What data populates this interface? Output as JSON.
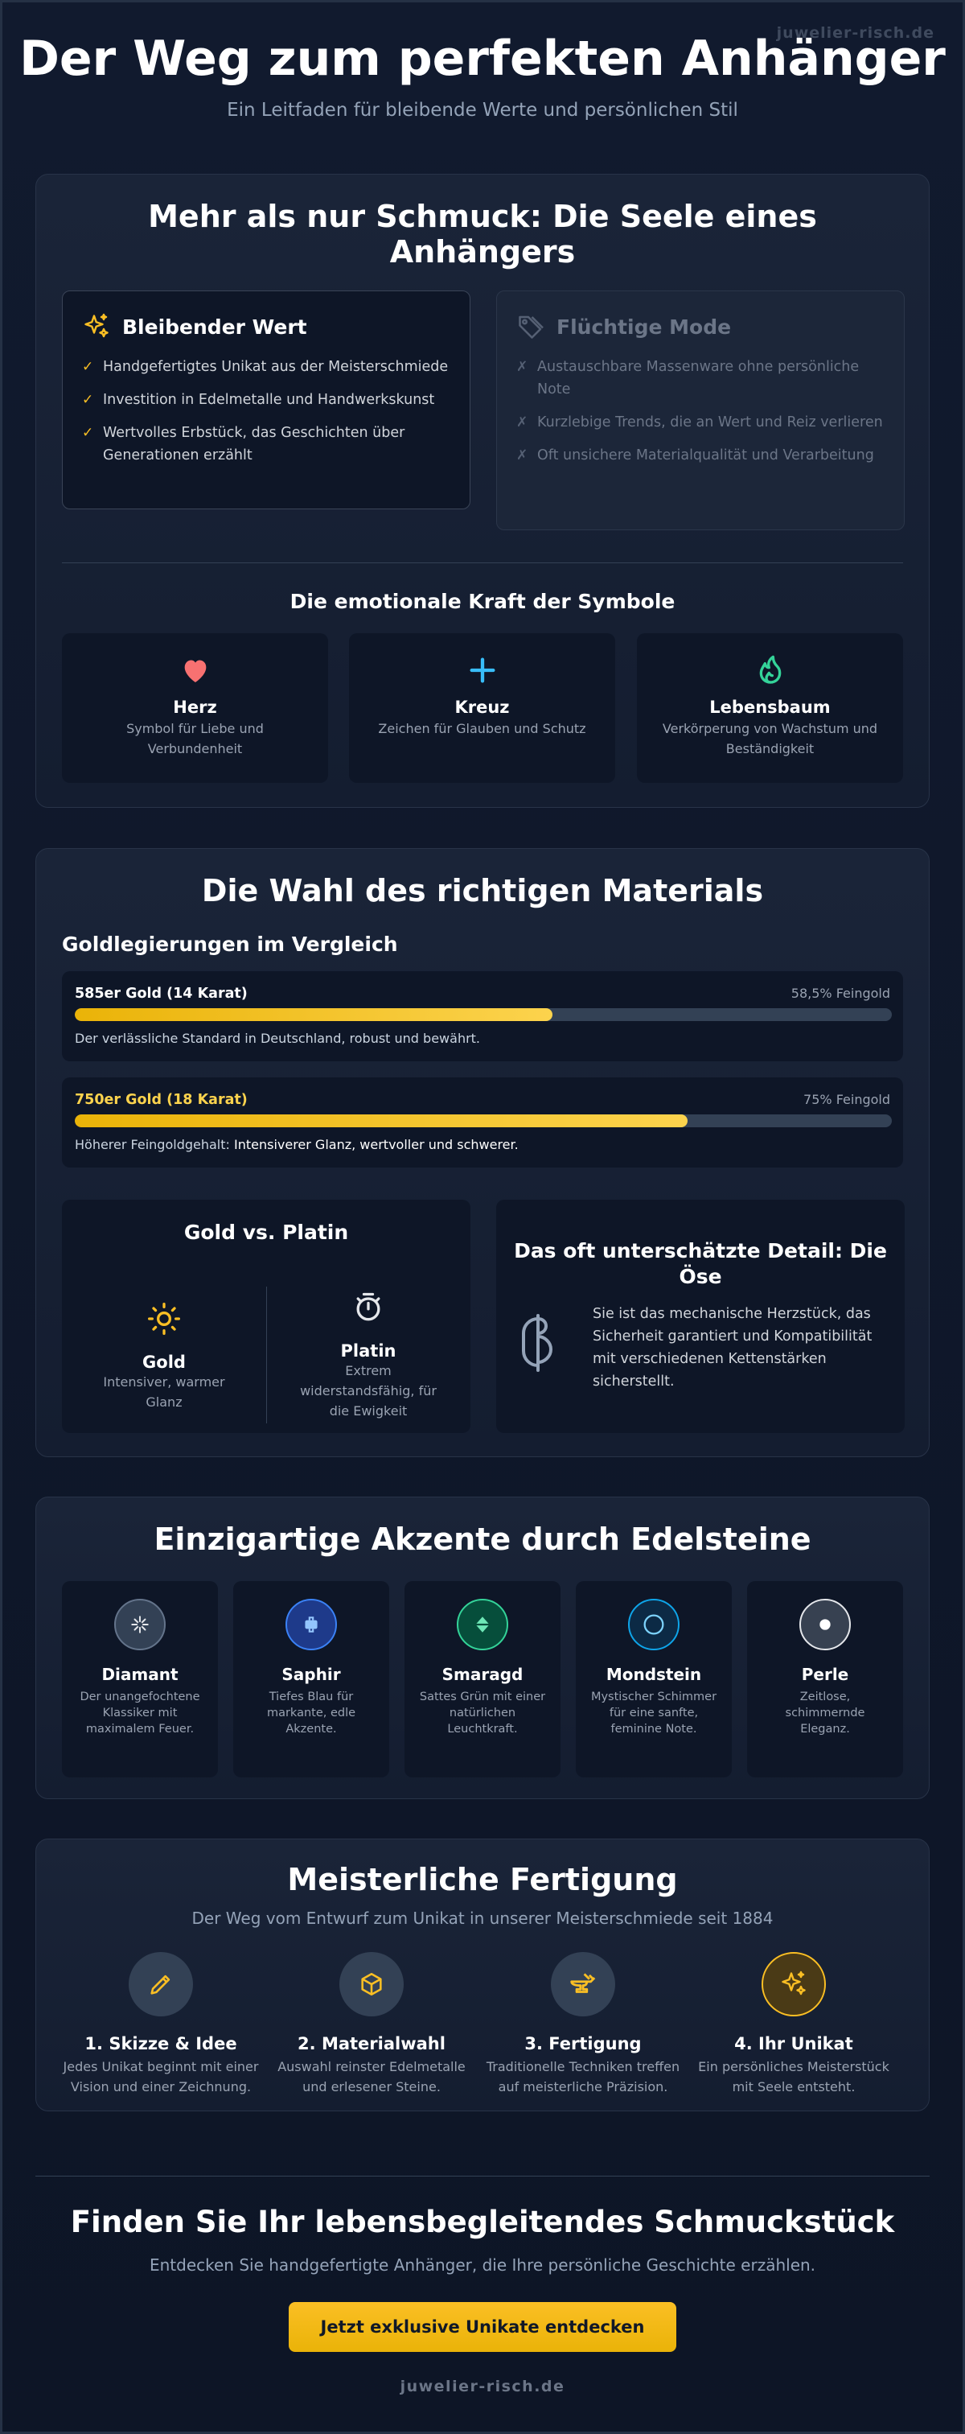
{
  "watermark": "juwelier-risch.de",
  "hero": {
    "title": "Der Weg zum perfekten Anhänger",
    "subtitle": "Ein Leitfaden für bleibende Werte und persönlichen Stil"
  },
  "soul": {
    "title": "Mehr als nur Schmuck: Die Seele eines Anhängers",
    "lasting": {
      "title": "Bleibender Wert",
      "items": [
        "Handgefertigtes Unikat aus der Meisterschmiede",
        "Investition in Edelmetalle und Handwerkskunst",
        "Wertvolles Erbstück, das Geschichten über Generationen erzählt"
      ]
    },
    "fleeting": {
      "title": "Flüchtige Mode",
      "items": [
        "Austauschbare Massenware ohne persönliche Note",
        "Kurzlebige Trends, die an Wert und Reiz verlieren",
        "Oft unsichere Materialqualität und Verarbeitung"
      ]
    },
    "symbols_title": "Die emotionale Kraft der Symbole",
    "symbols": [
      {
        "icon": "heart-icon",
        "title": "Herz",
        "desc": "Symbol für Liebe und Verbundenheit"
      },
      {
        "icon": "cross-icon",
        "title": "Kreuz",
        "desc": "Zeichen für Glauben und Schutz"
      },
      {
        "icon": "tree-of-life-icon",
        "title": "Lebensbaum",
        "desc": "Verkörperung von Wachstum und Beständigkeit"
      }
    ]
  },
  "materials": {
    "title": "Die Wahl des richtigen Materials",
    "alloys_title": "Goldlegierungen im Vergleich",
    "alloys": [
      {
        "name": "585er Gold (14 Karat)",
        "purity": "58,5% Feingold",
        "fill": 0.585,
        "desc": "Der verlässliche Standard in Deutschland, robust und bewährt.",
        "name_color": "#ffffff"
      },
      {
        "name": "750er Gold (18 Karat)",
        "purity": "75% Feingold",
        "fill": 0.75,
        "desc_prefix": "Höherer Feingoldgehalt: ",
        "desc_strong": "Intensiverer Glanz, wertvoller und schwerer.",
        "name_color": "#fcd34d"
      }
    ],
    "compare": {
      "title": "Gold vs. Platin",
      "gold": {
        "title": "Gold",
        "desc": "Intensiver, warmer Glanz"
      },
      "platinum": {
        "title": "Platin",
        "desc": "Extrem widerstandsfähig, für die Ewigkeit"
      }
    },
    "detail": {
      "title": "Das oft unterschätzte Detail: Die Öse",
      "text": "Sie ist das mechanische Herzstück, das Sicherheit garantiert und Kompatibilität mit verschiedenen Kettenstärken sicherstellt."
    }
  },
  "gems": {
    "title": "Einzigartige Akzente durch Edelsteine",
    "items": [
      {
        "name": "Diamant",
        "desc": "Der unangefochtene Klassiker mit maximalem Feuer.",
        "color": "#94a3b8"
      },
      {
        "name": "Saphir",
        "desc": "Tiefes Blau für markante, edle Akzente.",
        "color": "#3b82f6"
      },
      {
        "name": "Smaragd",
        "desc": "Sattes Grün mit einer natürlichen Leuchtkraft.",
        "color": "#34d399"
      },
      {
        "name": "Mondstein",
        "desc": "Mystischer Schimmer für eine sanfte, feminine Note.",
        "color": "#0ea5e9"
      },
      {
        "name": "Perle",
        "desc": "Zeitlose, schimmernde Eleganz.",
        "color": "#e5e7eb"
      }
    ]
  },
  "craft": {
    "title": "Meisterliche Fertigung",
    "subtitle": "Der Weg vom Entwurf zum Unikat in unserer Meisterschmiede seit 1884",
    "steps": [
      {
        "title": "1. Skizze & Idee",
        "desc": "Jedes Unikat beginnt mit einer Vision und einer Zeichnung.",
        "icon": "pencil-icon"
      },
      {
        "title": "2. Materialwahl",
        "desc": "Auswahl reinster Edelmetalle und erlesener Steine.",
        "icon": "cube-icon"
      },
      {
        "title": "3. Fertigung",
        "desc": "Traditionelle Techniken treffen auf meisterliche Präzision.",
        "icon": "anvil-icon"
      },
      {
        "title": "4. Ihr Unikat",
        "desc": "Ein persönliches Meisterstück mit Seele entsteht.",
        "icon": "sparkles-icon"
      }
    ]
  },
  "footer": {
    "title": "Finden Sie Ihr lebensbegleitendes Schmuckstück",
    "subtitle": "Entdecken Sie handgefertigte Anhänger, die Ihre persönliche Geschichte erzählen.",
    "cta": "Jetzt exklusive Unikate entdecken",
    "domain": "juwelier-risch.de"
  },
  "colors": {
    "accent": "#fbbf24",
    "background": "#0e1628",
    "card": "#172035"
  }
}
